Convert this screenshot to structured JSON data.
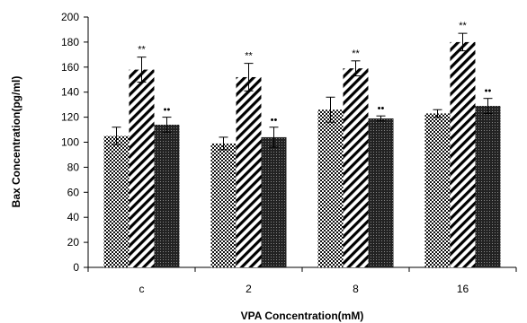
{
  "chart_data": {
    "type": "bar",
    "xlabel": "VPA Concentration(mM)",
    "ylabel": "Bax Concentration(pg/ml)",
    "categories": [
      "c",
      "2",
      "8",
      "16"
    ],
    "ylim": [
      0,
      200
    ],
    "yticks": [
      0,
      20,
      40,
      60,
      80,
      100,
      120,
      140,
      160,
      180,
      200
    ],
    "grid": false,
    "legend": "none",
    "series": [
      {
        "pattern": "checker",
        "values": [
          105,
          99,
          126,
          123
        ],
        "errors": [
          7,
          5,
          10,
          3
        ],
        "markers": [
          "",
          "",
          "",
          ""
        ]
      },
      {
        "pattern": "diagonal",
        "values": [
          158,
          152,
          159,
          180
        ],
        "errors": [
          10,
          11,
          6,
          7
        ],
        "markers": [
          "**",
          "**",
          "**",
          "**"
        ]
      },
      {
        "pattern": "dense-dots",
        "values": [
          114,
          104,
          119,
          129
        ],
        "errors": [
          6,
          8,
          2,
          6
        ],
        "markers": [
          "••",
          "••",
          "••",
          "••"
        ]
      }
    ]
  }
}
